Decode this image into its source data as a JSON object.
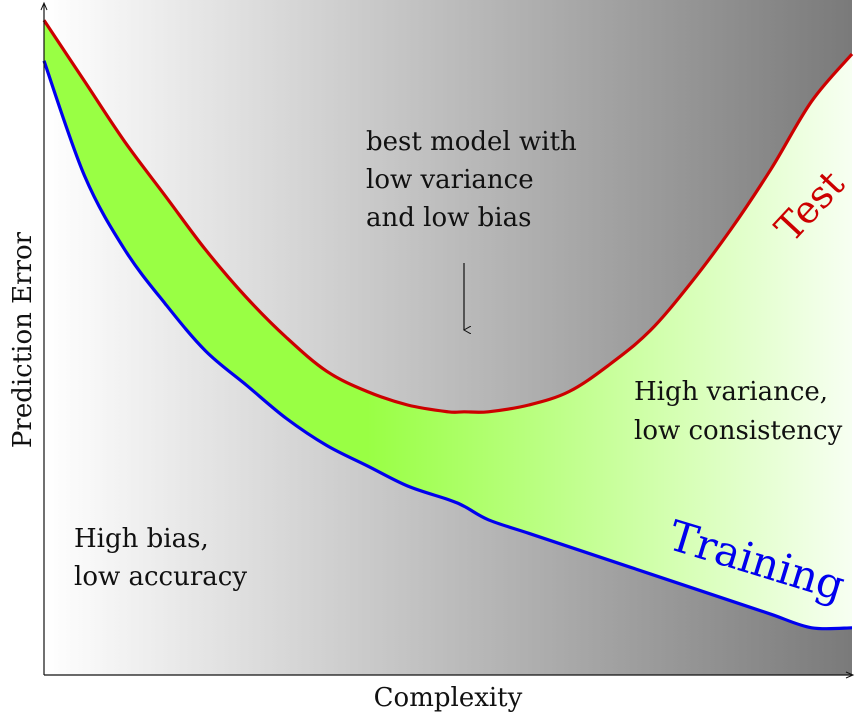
{
  "chart_data": {
    "type": "line",
    "title": "",
    "xlabel": "Complexity",
    "ylabel": "Prediction Error",
    "xlim": [
      0,
      1
    ],
    "ylim": [
      0,
      1
    ],
    "grid": false,
    "x_ticks": [],
    "y_ticks": [],
    "x": [
      0,
      0.05,
      0.1,
      0.15,
      0.2,
      0.25,
      0.3,
      0.35,
      0.4,
      0.45,
      0.5,
      0.52,
      0.55,
      0.6,
      0.65,
      0.7,
      0.75,
      0.8,
      0.85,
      0.9,
      0.95,
      1.0
    ],
    "series": [
      {
        "name": "Test",
        "color": "#cc0000",
        "values": [
          0.97,
          0.88,
          0.79,
          0.71,
          0.63,
          0.56,
          0.5,
          0.45,
          0.42,
          0.4,
          0.39,
          0.39,
          0.39,
          0.4,
          0.42,
          0.46,
          0.51,
          0.58,
          0.66,
          0.75,
          0.85,
          0.92
        ]
      },
      {
        "name": "Training",
        "color": "#0000ee",
        "values": [
          0.91,
          0.74,
          0.63,
          0.55,
          0.48,
          0.43,
          0.38,
          0.34,
          0.31,
          0.28,
          0.26,
          0.25,
          0.23,
          0.21,
          0.19,
          0.17,
          0.15,
          0.13,
          0.11,
          0.09,
          0.07,
          0.07
        ]
      }
    ],
    "fill_between": {
      "upper": "Test",
      "lower": "Training",
      "color": "#99ff44"
    },
    "background": "gradient white to gray (left to right)",
    "annotations": [
      {
        "text": [
          "best model with",
          "low variance",
          "and low bias"
        ],
        "arrow": true
      },
      {
        "text": [
          "High variance,",
          "low consistency"
        ]
      },
      {
        "text": [
          "High bias,",
          "low accuracy"
        ]
      }
    ],
    "series_labels": [
      "Test",
      "Training"
    ]
  },
  "colors": {
    "test": "#cc0000",
    "training": "#0000ee",
    "fill": "#99ff44",
    "bg_left": "#ffffff",
    "bg_right": "#7a7a7a"
  }
}
